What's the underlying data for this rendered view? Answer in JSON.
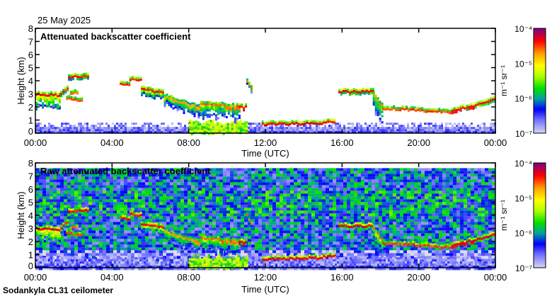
{
  "header": {
    "date": "25 May 2025"
  },
  "footer": {
    "instrument": "Sodankyla CL31 ceilometer"
  },
  "colorbar": {
    "unit_label": "m⁻¹ sr⁻¹",
    "tick_labels": [
      "10⁻⁴",
      "10⁻⁵",
      "10⁻⁶",
      "10⁻⁷"
    ],
    "log_range": [
      -7,
      -4
    ],
    "colormap": [
      [
        -7.0,
        "#dcdcf0"
      ],
      [
        -6.6,
        "#7070ff"
      ],
      [
        -6.3,
        "#0000ff"
      ],
      [
        -6.0,
        "#00a0a0"
      ],
      [
        -5.7,
        "#00e000"
      ],
      [
        -5.35,
        "#b0ff00"
      ],
      [
        -5.05,
        "#ffff00"
      ],
      [
        -4.7,
        "#ffa000"
      ],
      [
        -4.35,
        "#ff0000"
      ],
      [
        -4.0,
        "#800080"
      ]
    ]
  },
  "chart_data": [
    {
      "type": "heatmap",
      "title": "Attenuated backscatter coefficient",
      "xlabel": "Time (UTC)",
      "ylabel": "Height (km)",
      "xlim": [
        0,
        24
      ],
      "ylim": [
        0,
        8
      ],
      "x_tick_labels": [
        "00:00",
        "04:00",
        "08:00",
        "12:00",
        "16:00",
        "20:00",
        "00:00"
      ],
      "y_tick_labels": [
        "0",
        "1",
        "2",
        "3",
        "4",
        "5",
        "6",
        "7",
        "8"
      ],
      "noise_background": false
    },
    {
      "type": "heatmap",
      "title": "Raw attenuated backscatter coefficient",
      "xlabel": "Time (UTC)",
      "ylabel": "Height (km)",
      "xlim": [
        0,
        24
      ],
      "ylim": [
        0,
        8
      ],
      "x_tick_labels": [
        "00:00",
        "04:00",
        "08:00",
        "12:00",
        "16:00",
        "20:00",
        "00:00"
      ],
      "y_tick_labels": [
        "0",
        "1",
        "2",
        "3",
        "4",
        "5",
        "6",
        "7",
        "8"
      ],
      "noise_background": true
    }
  ],
  "cloud_layers": [
    {
      "t": [
        0.0,
        1.3
      ],
      "h": [
        3.0,
        2.9
      ],
      "fall_km": 1.4,
      "peak_log": -4.3
    },
    {
      "t": [
        1.3,
        1.7
      ],
      "h": [
        3.1,
        3.6
      ],
      "fall_km": 0.3,
      "peak_log": -4.4
    },
    {
      "t": [
        1.7,
        2.7
      ],
      "h": [
        4.3,
        4.4
      ],
      "fall_km": 0.2,
      "peak_log": -4.4
    },
    {
      "t": [
        1.6,
        2.4
      ],
      "h": [
        2.7,
        2.5
      ],
      "fall_km": 0.1,
      "peak_log": -4.5
    },
    {
      "t": [
        1.8,
        2.2
      ],
      "h": [
        3.1,
        3.1
      ],
      "fall_km": 0.1,
      "peak_log": -4.6
    },
    {
      "t": [
        4.4,
        4.9
      ],
      "h": [
        3.85,
        3.75
      ],
      "fall_km": 0.1,
      "peak_log": -4.4
    },
    {
      "t": [
        4.9,
        5.5
      ],
      "h": [
        4.1,
        4.05
      ],
      "fall_km": 0.1,
      "peak_log": -4.4
    },
    {
      "t": [
        5.5,
        6.7
      ],
      "h": [
        3.4,
        3.1
      ],
      "fall_km": 0.6,
      "peak_log": -4.4
    },
    {
      "t": [
        6.7,
        8.6
      ],
      "h": [
        2.8,
        1.9
      ],
      "fall_km": 0.9,
      "peak_log": -4.7
    },
    {
      "t": [
        8.6,
        10.6
      ],
      "h": [
        2.3,
        2.0
      ],
      "fall_km": 1.2,
      "peak_log": -4.6
    },
    {
      "t": [
        10.6,
        11.0
      ],
      "h": [
        2.0,
        2.0
      ],
      "fall_km": 0.2,
      "peak_log": -4.3
    },
    {
      "t": [
        11.0,
        11.3
      ],
      "h": [
        4.0,
        3.2
      ],
      "fall_km": 0.3,
      "peak_log": -4.6
    },
    {
      "t": [
        11.8,
        15.0
      ],
      "h": [
        0.7,
        0.8
      ],
      "fall_km": 0.1,
      "peak_log": -4.3
    },
    {
      "t": [
        15.0,
        15.6
      ],
      "h": [
        0.9,
        0.9
      ],
      "fall_km": 0.1,
      "peak_log": -4.4
    },
    {
      "t": [
        15.8,
        17.6
      ],
      "h": [
        3.2,
        3.2
      ],
      "fall_km": 0.2,
      "peak_log": -4.3
    },
    {
      "t": [
        17.6,
        18.1
      ],
      "h": [
        3.0,
        2.0
      ],
      "fall_km": 1.6,
      "peak_log": -4.6
    },
    {
      "t": [
        18.1,
        19.8
      ],
      "h": [
        1.9,
        1.8
      ],
      "fall_km": 0.1,
      "peak_log": -4.5
    },
    {
      "t": [
        19.8,
        21.7
      ],
      "h": [
        1.75,
        1.6
      ],
      "fall_km": 0.1,
      "peak_log": -4.5
    },
    {
      "t": [
        21.7,
        24.0
      ],
      "h": [
        1.7,
        2.6
      ],
      "fall_km": 0.2,
      "peak_log": -4.3
    }
  ],
  "precip_regions": [
    {
      "t": [
        8.0,
        11.0
      ],
      "h": [
        0,
        1.1
      ],
      "log": -5.4
    }
  ],
  "ground_noise_top_km": 0.8
}
